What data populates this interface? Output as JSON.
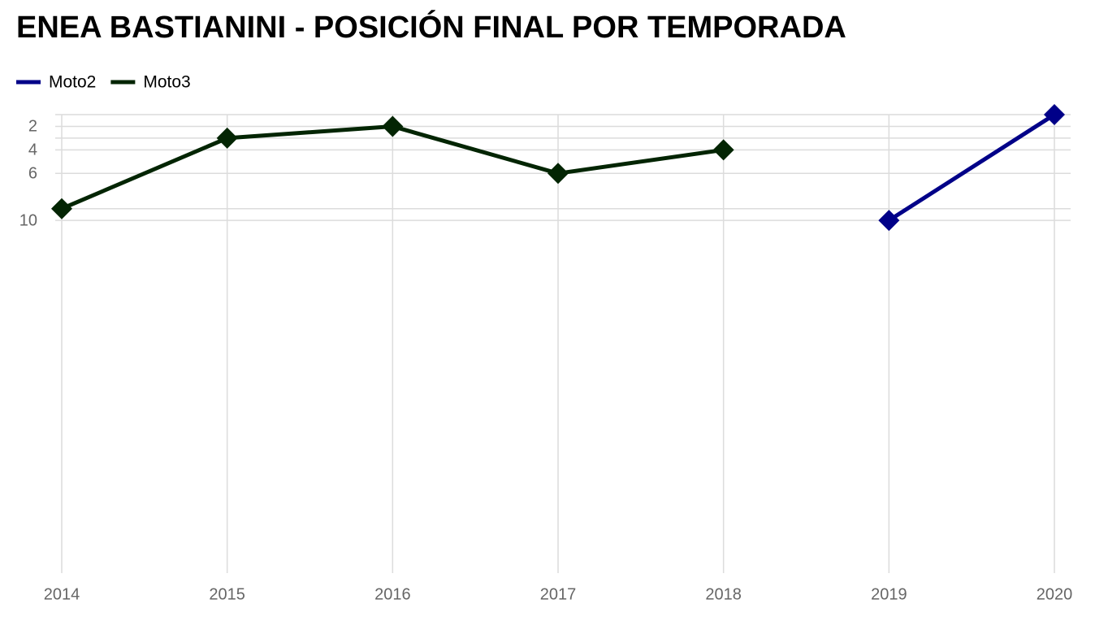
{
  "chart_data": {
    "type": "line",
    "title": "ENEA BASTIANINI - POSICIÓN FINAL POR TEMPORADA",
    "x": [
      2014,
      2015,
      2016,
      2017,
      2018,
      2019,
      2020
    ],
    "series": [
      {
        "name": "Moto2",
        "color": "#000088",
        "values": [
          null,
          null,
          null,
          null,
          null,
          10,
          1
        ]
      },
      {
        "name": "Moto3",
        "color": "#032503",
        "values": [
          9,
          3,
          2,
          6,
          4,
          null,
          null
        ]
      }
    ],
    "xlim": [
      2014,
      2020
    ],
    "xticks": [
      2014,
      2015,
      2016,
      2017,
      2018,
      2019,
      2020
    ],
    "ylim": [
      1,
      40
    ],
    "y_inverted": true,
    "yticks": [
      2,
      4,
      6,
      10
    ],
    "yminor": [
      1,
      3,
      9
    ],
    "grid": true,
    "legend": "top-left"
  }
}
